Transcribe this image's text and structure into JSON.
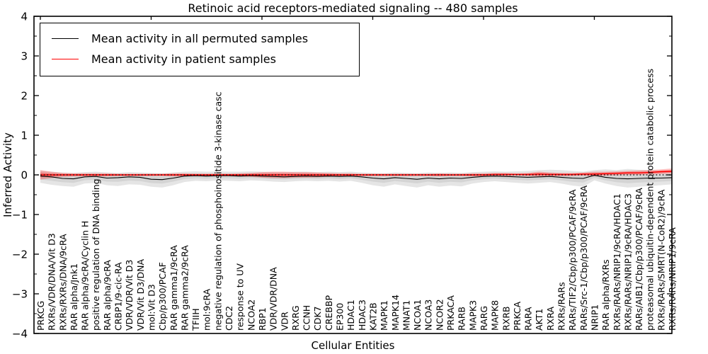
{
  "chart_data": {
    "type": "line",
    "title": "Retinoic acid receptors-mediated signaling -- 480 samples",
    "xlabel": "Cellular Entities",
    "ylabel": "Inferred Activity",
    "ylim": [
      -4,
      4
    ],
    "yticks": [
      4,
      3,
      2,
      1,
      0,
      -1,
      -2,
      -3,
      -4
    ],
    "ytick_labels": [
      "4",
      "3",
      "2",
      "1",
      "0",
      "−1",
      "−2",
      "−3",
      "−4"
    ],
    "minor_tick_step": 0.5,
    "grid": false,
    "legend_position": "upper left",
    "x_major_tick_every": 10,
    "categories": [
      "PRKCG",
      "RXRs/VDR/DNA/Vit D3",
      "RXRs/RXRs/DNA/9cRA",
      "RAR alpha/Jnk1",
      "RAR alpha/9cRA/Cyclin H",
      "positive regulation of DNA binding",
      "RAR alpha/9cRA",
      "CRBP1/9-cic-RA",
      "VDR/VDR/Vit D3",
      "VDR/Vit D3/DNA",
      "mol:Vit D3",
      "Cbp/p300/PCAF",
      "RAR gamma1/9cRA",
      "RAR gamma2/9cRA",
      "TFIIH",
      "mol:9cRA",
      "negative regulation of phosphoinositide 3-kinase casc",
      "CDC2",
      "response to UV",
      "NCOA2",
      "RBP1",
      "VDR/VDR/DNA",
      "VDR",
      "RXRG",
      "CCNH",
      "CDK7",
      "CREBBP",
      "EP300",
      "HDAC1",
      "HDAC3",
      "KAT2B",
      "MAPK1",
      "MAPK14",
      "MNAT1",
      "NCOA1",
      "NCOA3",
      "NCOR2",
      "PRKACA",
      "RARB",
      "MAPK3",
      "RARG",
      "MAPK8",
      "RXRB",
      "PRKCA",
      "RARA",
      "AKT1",
      "RXRA",
      "RXRs/RARs",
      "RARs/TIF2/Cbp/p300/PCAF/9cRA",
      "RARs/Src-1/Cbp/p300/PCAF/9cRA",
      "NRIP1",
      "RAR alpha/RXRs",
      "RXRs/RARs/NRIP1/9cRA/HDAC1",
      "RXRs/RARs/NRIP1/9cRA/HDAC3",
      "RARs/AIB1/Cbp/p300/PCAF/9cRA",
      "proteasomal ubiquitin-dependent protein catabolic process",
      "RXRs/RARs/SMRT(N-CoR2)/9cRA",
      "RXRs/RARs/NRIP1/9cRA"
    ],
    "series": [
      {
        "name": "Mean activity in all permuted samples",
        "color": "#000000",
        "band_color": "#000000",
        "band_opacity": 0.1,
        "values": [
          -0.03,
          -0.05,
          -0.09,
          -0.1,
          -0.05,
          -0.04,
          -0.08,
          -0.07,
          -0.05,
          -0.06,
          -0.11,
          -0.12,
          -0.08,
          -0.03,
          -0.02,
          -0.03,
          -0.02,
          -0.02,
          -0.03,
          -0.02,
          -0.03,
          -0.04,
          -0.05,
          -0.04,
          -0.03,
          -0.04,
          -0.03,
          -0.04,
          -0.03,
          -0.05,
          -0.08,
          -0.1,
          -0.07,
          -0.09,
          -0.11,
          -0.08,
          -0.1,
          -0.08,
          -0.09,
          -0.06,
          -0.04,
          -0.03,
          -0.04,
          -0.05,
          -0.06,
          -0.05,
          -0.04,
          -0.06,
          -0.08,
          -0.09,
          -0.01,
          -0.06,
          -0.09,
          -0.1,
          -0.09,
          -0.08,
          -0.08,
          -0.07
        ],
        "band_upper": [
          0.1,
          0.08,
          0.06,
          0.05,
          0.07,
          0.08,
          0.06,
          0.05,
          0.07,
          0.06,
          0.05,
          0.04,
          0.06,
          0.08,
          0.09,
          0.08,
          0.09,
          0.08,
          0.08,
          0.09,
          0.08,
          0.07,
          0.07,
          0.08,
          0.08,
          0.07,
          0.08,
          0.07,
          0.08,
          0.06,
          0.05,
          0.04,
          0.06,
          0.05,
          0.04,
          0.06,
          0.05,
          0.06,
          0.05,
          0.07,
          0.08,
          0.09,
          0.08,
          0.09,
          0.1,
          0.12,
          0.13,
          0.12,
          0.1,
          0.08,
          0.12,
          0.14,
          0.12,
          0.15,
          0.13,
          0.12,
          0.1,
          0.1
        ],
        "band_lower": [
          -0.2,
          -0.25,
          -0.28,
          -0.3,
          -0.22,
          -0.2,
          -0.26,
          -0.28,
          -0.24,
          -0.25,
          -0.3,
          -0.32,
          -0.26,
          -0.18,
          -0.15,
          -0.16,
          -0.14,
          -0.15,
          -0.16,
          -0.14,
          -0.15,
          -0.17,
          -0.18,
          -0.16,
          -0.15,
          -0.16,
          -0.15,
          -0.17,
          -0.15,
          -0.2,
          -0.26,
          -0.3,
          -0.24,
          -0.28,
          -0.32,
          -0.26,
          -0.3,
          -0.27,
          -0.29,
          -0.22,
          -0.18,
          -0.16,
          -0.18,
          -0.2,
          -0.22,
          -0.2,
          -0.18,
          -0.22,
          -0.27,
          -0.3,
          -0.14,
          -0.22,
          -0.28,
          -0.32,
          -0.3,
          -0.28,
          -0.26,
          -0.24
        ]
      },
      {
        "name": "Mean activity in patient samples",
        "color": "#ff0000",
        "band_color": "#ff0000",
        "band_opacity": 0.25,
        "values": [
          0.0,
          0.0,
          0.0,
          0.0,
          0.0,
          0.0,
          0.0,
          0.0,
          0.0,
          0.0,
          0.0,
          0.0,
          0.0,
          0.0,
          0.0,
          0.0,
          0.0,
          0.0,
          0.0,
          0.0,
          0.0,
          0.0,
          0.0,
          0.0,
          0.0,
          0.0,
          0.0,
          0.0,
          0.0,
          0.0,
          0.0,
          0.0,
          0.0,
          0.0,
          0.0,
          0.0,
          0.0,
          0.0,
          0.0,
          0.0,
          0.0,
          0.01,
          0.01,
          0.01,
          0.01,
          0.02,
          0.01,
          0.01,
          0.01,
          0.02,
          0.02,
          0.03,
          0.04,
          0.05,
          0.05,
          0.06,
          0.08,
          0.09
        ],
        "band_upper": [
          0.12,
          0.08,
          0.05,
          0.04,
          0.04,
          0.04,
          0.04,
          0.03,
          0.03,
          0.03,
          0.03,
          0.03,
          0.04,
          0.04,
          0.03,
          0.03,
          0.03,
          0.03,
          0.04,
          0.05,
          0.07,
          0.08,
          0.08,
          0.07,
          0.07,
          0.06,
          0.05,
          0.04,
          0.04,
          0.03,
          0.03,
          0.03,
          0.03,
          0.03,
          0.03,
          0.03,
          0.04,
          0.03,
          0.03,
          0.04,
          0.04,
          0.05,
          0.05,
          0.04,
          0.05,
          0.08,
          0.06,
          0.05,
          0.05,
          0.06,
          0.08,
          0.08,
          0.09,
          0.1,
          0.11,
          0.12,
          0.14,
          0.16
        ],
        "band_lower": [
          -0.12,
          -0.08,
          -0.05,
          -0.04,
          -0.04,
          -0.04,
          -0.04,
          -0.03,
          -0.03,
          -0.03,
          -0.03,
          -0.03,
          -0.04,
          -0.04,
          -0.03,
          -0.03,
          -0.03,
          -0.03,
          -0.04,
          -0.05,
          -0.07,
          -0.08,
          -0.08,
          -0.07,
          -0.07,
          -0.06,
          -0.05,
          -0.04,
          -0.04,
          -0.03,
          -0.03,
          -0.03,
          -0.03,
          -0.03,
          -0.03,
          -0.03,
          -0.04,
          -0.03,
          -0.03,
          -0.04,
          -0.04,
          -0.03,
          -0.03,
          -0.02,
          -0.03,
          -0.04,
          -0.04,
          -0.03,
          -0.03,
          -0.02,
          -0.04,
          -0.02,
          -0.01,
          0.0,
          0.0,
          0.01,
          0.02,
          0.03
        ]
      }
    ],
    "zero_line": {
      "value": 0,
      "style": "dotted",
      "color": "#000000"
    }
  },
  "legend": {
    "items": [
      {
        "label": "Mean activity in all permuted samples"
      },
      {
        "label": "Mean activity in patient samples"
      }
    ]
  }
}
